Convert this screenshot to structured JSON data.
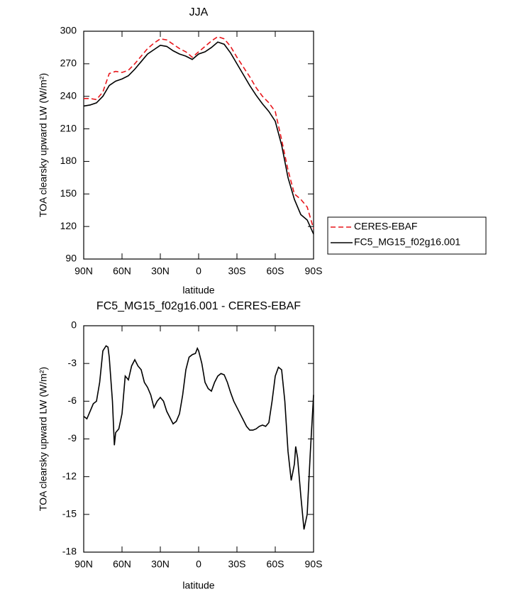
{
  "chart_data": [
    {
      "type": "line",
      "title": "JJA",
      "xlabel": "latitude",
      "ylabel": "TOA clearsky upward LW (W/m²)",
      "x": [
        90,
        85,
        80,
        75,
        70,
        65,
        60,
        55,
        50,
        45,
        40,
        35,
        30,
        25,
        20,
        15,
        10,
        5,
        0,
        -5,
        -10,
        -15,
        -20,
        -25,
        -30,
        -35,
        -40,
        -45,
        -50,
        -55,
        -60,
        -65,
        -70,
        -75,
        -80,
        -85,
        -90
      ],
      "series": [
        {
          "name": "CERES-EBAF",
          "color": "#e8161b",
          "linestyle": "dashed",
          "values": [
            238,
            238,
            237,
            244,
            261,
            263,
            262,
            264,
            270,
            277,
            284,
            289,
            293,
            292,
            288,
            284,
            281,
            276,
            281,
            286,
            291,
            295,
            293,
            286,
            276,
            267,
            258,
            248,
            240,
            234,
            226,
            200,
            172,
            150,
            145,
            138,
            118
          ]
        },
        {
          "name": "FC5_MG15_f02g16.001",
          "color": "#000000",
          "linestyle": "solid",
          "values": [
            231,
            232,
            234,
            240,
            250,
            254,
            256,
            259,
            265,
            272,
            279,
            283,
            287,
            286,
            282,
            279,
            277,
            274,
            279,
            281,
            285,
            290,
            288,
            280,
            270,
            260,
            250,
            241,
            233,
            226,
            217,
            195,
            165,
            145,
            131,
            126,
            113
          ]
        }
      ],
      "xlim": [
        90,
        -90
      ],
      "xticks": [
        {
          "value": 90,
          "label": "90N"
        },
        {
          "value": 60,
          "label": "60N"
        },
        {
          "value": 30,
          "label": "30N"
        },
        0,
        {
          "value": -30,
          "label": "30S"
        },
        {
          "value": -60,
          "label": "60S"
        },
        {
          "value": -90,
          "label": "90S"
        }
      ],
      "ylim": [
        90,
        300
      ],
      "yticks": [
        90,
        120,
        150,
        180,
        210,
        240,
        270,
        300
      ],
      "legend": "outside right"
    },
    {
      "type": "line",
      "title": "FC5_MG15_f02g16.001 - CERES-EBAF",
      "xlabel": "latitude",
      "ylabel": "TOA clearsky upward LW (W/m²)",
      "x": [
        90,
        87.5,
        85,
        82.5,
        80,
        77.5,
        75,
        72.5,
        71,
        70,
        67.5,
        66,
        65,
        62.5,
        60,
        57.5,
        55,
        52.5,
        50,
        47.5,
        45,
        42.5,
        40,
        37.5,
        35,
        32.5,
        30,
        27.5,
        25,
        22.5,
        20,
        17.5,
        15,
        12.5,
        10,
        7.5,
        5,
        2.5,
        1,
        0,
        -2.5,
        -5,
        -7.5,
        -10,
        -12.5,
        -15,
        -17.5,
        -20,
        -22.5,
        -25,
        -27.5,
        -30,
        -32.5,
        -35,
        -37.5,
        -40,
        -42.5,
        -45,
        -47.5,
        -50,
        -52.5,
        -55,
        -57.5,
        -60,
        -62.5,
        -65,
        -67.5,
        -70,
        -72.5,
        -75,
        -76,
        -77.5,
        -80,
        -82.5,
        -85,
        -87.5,
        -90
      ],
      "series": [
        {
          "color": "#000000",
          "linestyle": "solid",
          "values": [
            -7.2,
            -7.4,
            -6.8,
            -6.2,
            -6.0,
            -4.5,
            -2.0,
            -1.6,
            -1.7,
            -2.5,
            -6.0,
            -9.5,
            -8.5,
            -8.2,
            -7.0,
            -4.0,
            -4.3,
            -3.2,
            -2.7,
            -3.2,
            -3.5,
            -4.5,
            -4.9,
            -5.5,
            -6.5,
            -6.0,
            -5.7,
            -6.0,
            -6.8,
            -7.3,
            -7.8,
            -7.6,
            -7.0,
            -5.5,
            -3.5,
            -2.5,
            -2.3,
            -2.2,
            -1.8,
            -2.0,
            -3.0,
            -4.5,
            -5.0,
            -5.2,
            -4.5,
            -4.0,
            -3.8,
            -3.9,
            -4.5,
            -5.3,
            -6.0,
            -6.5,
            -7.0,
            -7.5,
            -8.0,
            -8.3,
            -8.3,
            -8.2,
            -8.0,
            -7.9,
            -8.0,
            -7.7,
            -6.0,
            -4.0,
            -3.3,
            -3.5,
            -6.0,
            -10.0,
            -12.3,
            -11.0,
            -9.6,
            -10.5,
            -13.5,
            -16.2,
            -15.0,
            -10.0,
            -5.5
          ]
        }
      ],
      "xlim": [
        90,
        -90
      ],
      "xticks": [
        {
          "value": 90,
          "label": "90N"
        },
        {
          "value": 60,
          "label": "60N"
        },
        {
          "value": 30,
          "label": "30N"
        },
        0,
        {
          "value": -30,
          "label": "30S"
        },
        {
          "value": -60,
          "label": "60S"
        },
        {
          "value": -90,
          "label": "90S"
        }
      ],
      "ylim": [
        -18,
        0
      ],
      "yticks": [
        -18,
        -15,
        -12,
        -9,
        -6,
        -3,
        0
      ]
    }
  ]
}
